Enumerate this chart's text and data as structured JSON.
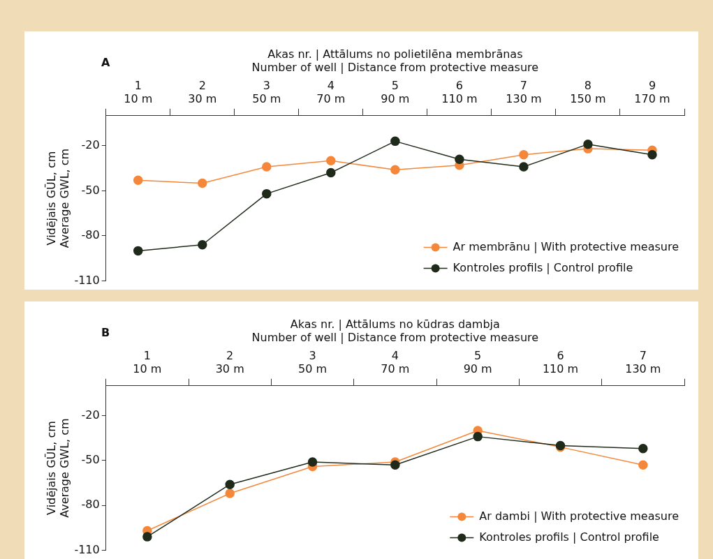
{
  "chart_data": [
    {
      "type": "line",
      "title": "A",
      "xlabel": "Akas nr. | Attālums no polietilēna membrānas\nNumber of well | Distance from protective measure",
      "ylabel": "Vidējais GŪL, cm\nAverage GWL, cm",
      "categories": [
        "1\n10 m",
        "2\n30 m",
        "3\n50 m",
        "4\n70 m",
        "5\n90 m",
        "6\n110 m",
        "7\n130 m",
        "8\n150 m",
        "9\n170 m"
      ],
      "series": [
        {
          "name": "Ar membrānu | With protective measure",
          "color": "#f4873a",
          "values": [
            -43,
            -45,
            -34,
            -30,
            -36,
            -33,
            -26,
            -22,
            -23
          ]
        },
        {
          "name": "Kontroles profils | Control profile",
          "color": "#1f2a1a",
          "values": [
            -90,
            -86,
            -52,
            -38,
            -17,
            -29,
            -34,
            -19,
            -26
          ]
        }
      ],
      "ylim": [
        -110,
        0
      ],
      "yticks": [
        -110,
        -80,
        -50,
        -20
      ],
      "grid": false,
      "legend": "bottom right",
      "marker": "circle"
    },
    {
      "type": "line",
      "title": "B",
      "xlabel": "Akas nr. | Attālums no kūdras dambja\nNumber of well | Distance from protective measure",
      "ylabel": "Vidējais GŪL, cm\nAverage GWL, cm",
      "categories": [
        "1\n10 m",
        "2\n30 m",
        "3\n50 m",
        "4\n70 m",
        "5\n90 m",
        "6\n110 m",
        "7\n130 m"
      ],
      "series": [
        {
          "name": "Ar dambi | With protective measure",
          "color": "#f4873a",
          "values": [
            -97,
            -72,
            -54,
            -51,
            -30,
            -41,
            -53
          ]
        },
        {
          "name": "Kontroles profils | Control profile",
          "color": "#1f2a1a",
          "values": [
            -101,
            -66,
            -51,
            -53,
            -34,
            -40,
            -42
          ]
        }
      ],
      "ylim": [
        -110,
        0
      ],
      "yticks": [
        -110,
        -80,
        -50,
        -20
      ],
      "grid": false,
      "legend": "bottom right",
      "marker": "circle"
    }
  ]
}
